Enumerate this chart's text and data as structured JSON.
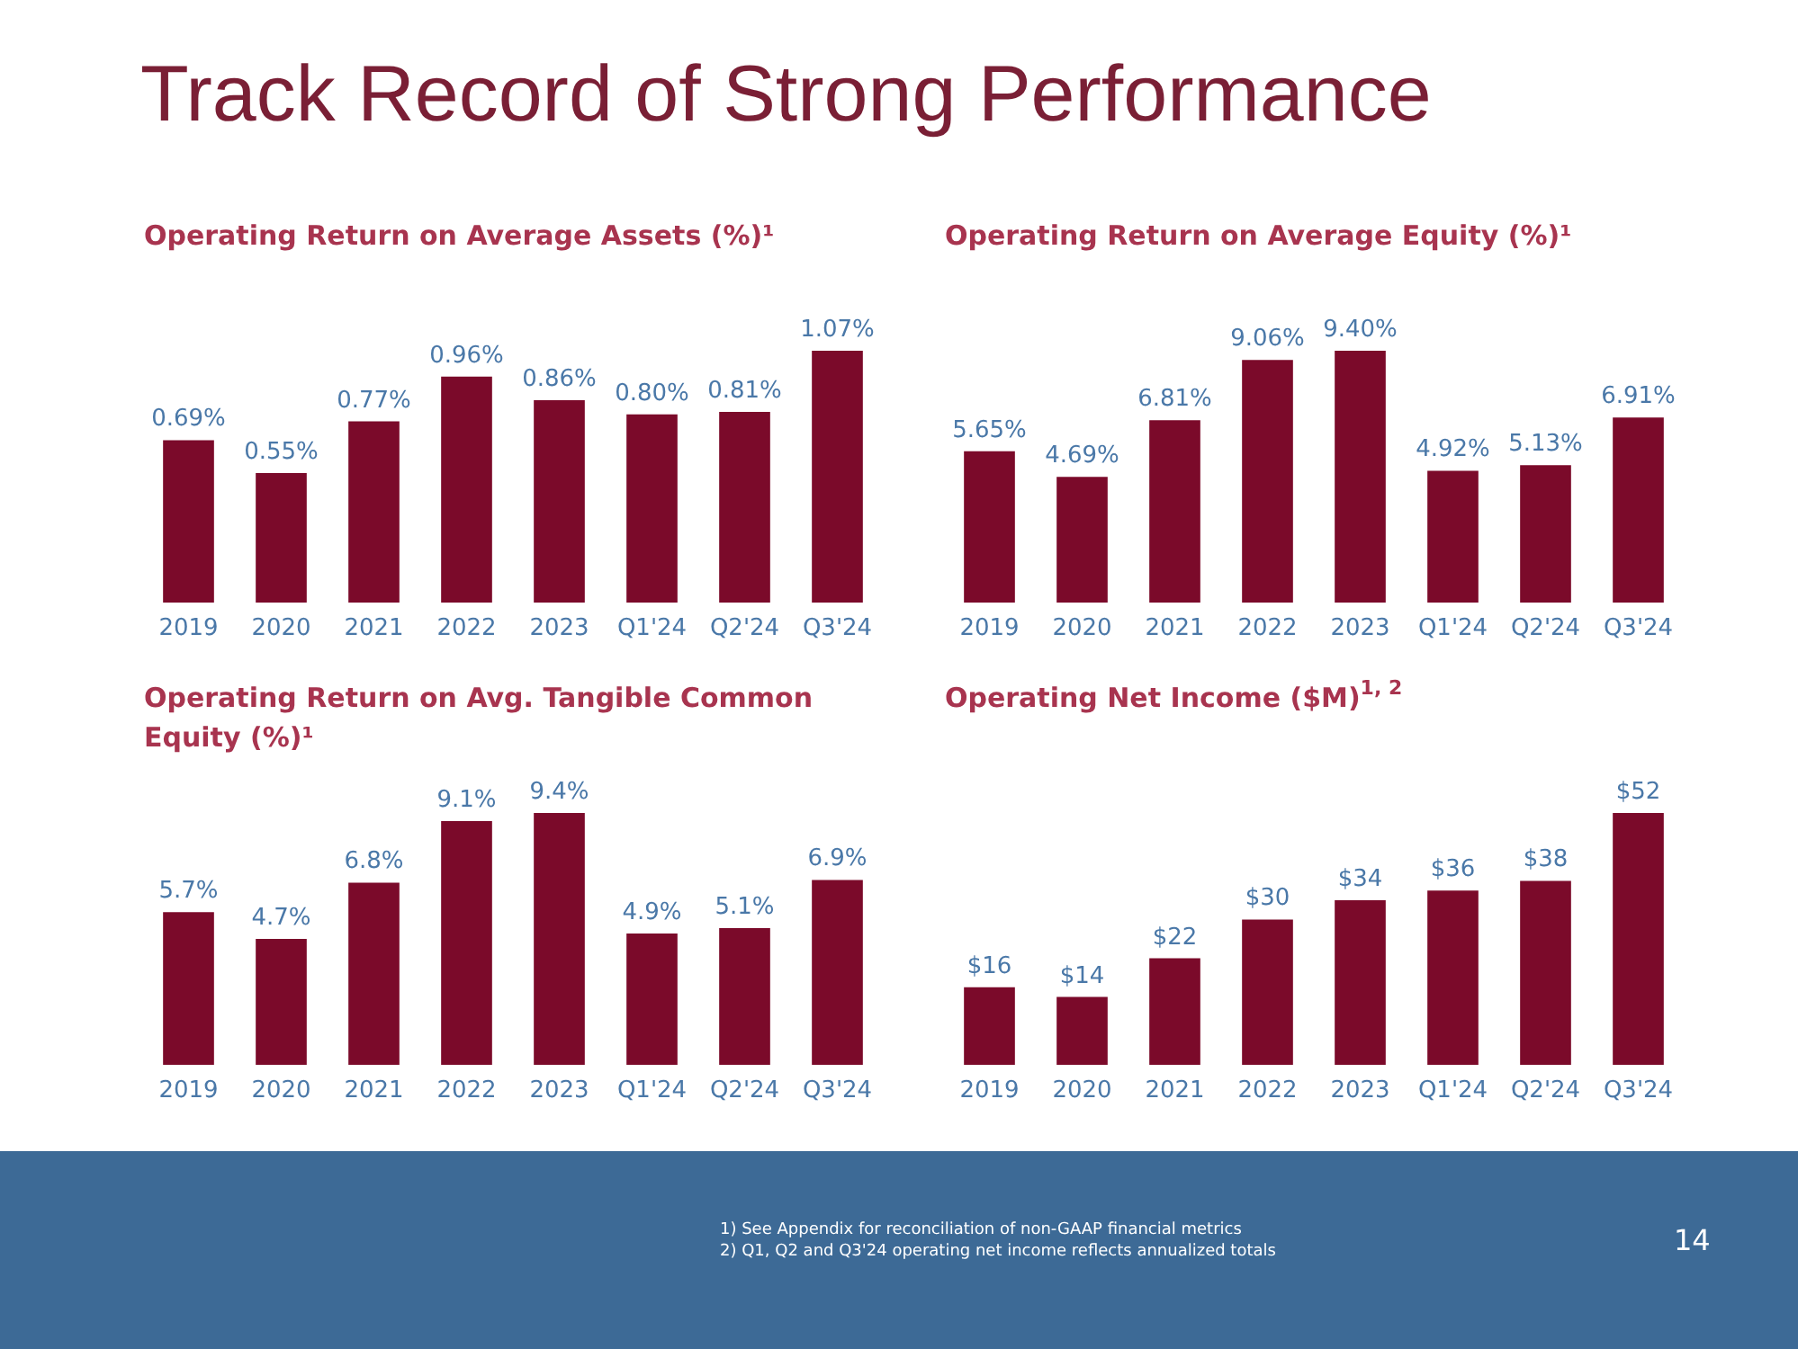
{
  "chart_data": [
    {
      "type": "bar",
      "title": "Operating Return on Average Assets (%)¹",
      "annotations": [
        "Track Record of Strong Performance"
      ],
      "categories": [
        "2019",
        "2020",
        "2021",
        "2022",
        "2023",
        "Q1'24",
        "Q2'24",
        "Q3'24"
      ],
      "values": [
        0.69,
        0.55,
        0.77,
        0.96,
        0.86,
        0.8,
        0.81,
        1.07
      ],
      "value_labels": [
        "0.69%",
        "0.55%",
        "0.77%",
        "0.96%",
        "0.86%",
        "0.80%",
        "0.81%",
        "1.07%"
      ],
      "color": "#7b0a2a"
    },
    {
      "type": "bar",
      "title": "Operating Return on Average Equity (%)¹",
      "categories": [
        "2019",
        "2020",
        "2021",
        "2022",
        "2023",
        "Q1'24",
        "Q2'24",
        "Q3'24"
      ],
      "values": [
        5.65,
        4.69,
        6.81,
        9.06,
        9.4,
        4.92,
        5.13,
        6.91
      ],
      "value_labels": [
        "5.65%",
        "4.69%",
        "6.81%",
        "9.06%",
        "9.40%",
        "4.92%",
        "5.13%",
        "6.91%"
      ],
      "color": "#7b0a2a"
    },
    {
      "type": "bar",
      "title": "Operating Return on Avg. Tangible Common Equity (%)¹",
      "categories": [
        "2019",
        "2020",
        "2021",
        "2022",
        "2023",
        "Q1'24",
        "Q2'24",
        "Q3'24"
      ],
      "values": [
        5.7,
        4.7,
        6.8,
        9.1,
        9.4,
        4.9,
        5.1,
        6.9
      ],
      "value_labels": [
        "5.7%",
        "4.7%",
        "6.8%",
        "9.1%",
        "9.4%",
        "4.9%",
        "5.1%",
        "6.9%"
      ],
      "color": "#7b0a2a"
    },
    {
      "type": "bar",
      "title": "Operating Net Income ($M)$^{1, 2}$",
      "annotations": [
        "1)    See Appendix for reconciliation of non-GAAP financial metrics",
        "2)    Q1, Q2 and Q3'24 operating net income reflects annualized totals",
        "14"
      ],
      "categories": [
        "2019",
        "2020",
        "2021",
        "2022",
        "2023",
        "Q1'24",
        "Q2'24",
        "Q3'24"
      ],
      "values": [
        16,
        14,
        22,
        30,
        34,
        36,
        38,
        52
      ],
      "value_labels": [
        "$16",
        "$14",
        "$22",
        "$30",
        "$34",
        "$36",
        "$38",
        "$52"
      ],
      "color": "#7b0a2a"
    }
  ]
}
